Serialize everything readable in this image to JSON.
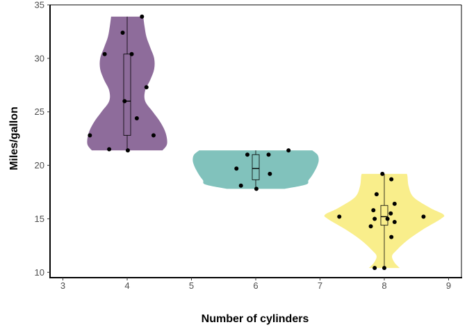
{
  "chart_data": {
    "type": "violin",
    "xlabel": "Number of cylinders",
    "ylabel": "Miles/gallon",
    "xlim": [
      2.8,
      9.2
    ],
    "ylim": [
      9.5,
      35
    ],
    "x_ticks": [
      3,
      4,
      5,
      6,
      7,
      8,
      9
    ],
    "y_ticks": [
      10,
      15,
      20,
      25,
      30,
      35
    ],
    "grid": false,
    "groups": [
      {
        "x": 4,
        "color": "#8E6C9B",
        "width_profile": [
          [
            21.4,
            0.55
          ],
          [
            22.0,
            0.62
          ],
          [
            23.0,
            0.6
          ],
          [
            24.0,
            0.52
          ],
          [
            25.0,
            0.4
          ],
          [
            26.0,
            0.28
          ],
          [
            27.0,
            0.28
          ],
          [
            28.0,
            0.36
          ],
          [
            29.0,
            0.42
          ],
          [
            30.0,
            0.42
          ],
          [
            31.0,
            0.36
          ],
          [
            32.0,
            0.3
          ],
          [
            33.0,
            0.27
          ],
          [
            33.9,
            0.25
          ]
        ],
        "box": {
          "min": 21.4,
          "q1": 22.8,
          "median": 26.0,
          "q3": 30.4,
          "max": 33.9
        },
        "points": [
          [
            4.23,
            33.9
          ],
          [
            3.93,
            32.4
          ],
          [
            4.07,
            30.4
          ],
          [
            3.65,
            30.4
          ],
          [
            4.3,
            27.3
          ],
          [
            3.96,
            26.0
          ],
          [
            4.15,
            24.4
          ],
          [
            3.42,
            22.8
          ],
          [
            4.41,
            22.8
          ],
          [
            3.72,
            21.5
          ],
          [
            4.01,
            21.4
          ]
        ]
      },
      {
        "x": 6,
        "color": "#81C2BC",
        "width_profile": [
          [
            17.8,
            0.45
          ],
          [
            18.2,
            0.78
          ],
          [
            18.6,
            0.82
          ],
          [
            19.0,
            0.87
          ],
          [
            19.5,
            0.92
          ],
          [
            20.0,
            0.96
          ],
          [
            20.5,
            0.98
          ],
          [
            21.0,
            0.96
          ],
          [
            21.4,
            0.88
          ]
        ],
        "box": {
          "min": 17.8,
          "q1": 18.65,
          "median": 19.7,
          "q3": 21.0,
          "max": 21.4
        },
        "points": [
          [
            6.51,
            21.4
          ],
          [
            5.87,
            21.0
          ],
          [
            6.2,
            21.0
          ],
          [
            5.7,
            19.7
          ],
          [
            6.22,
            19.2
          ],
          [
            5.77,
            18.1
          ],
          [
            6.01,
            17.8
          ]
        ]
      },
      {
        "x": 8,
        "color": "#F9EE8B",
        "width_profile": [
          [
            10.4,
            0.24
          ],
          [
            10.9,
            0.16
          ],
          [
            11.5,
            0.12
          ],
          [
            12.0,
            0.18
          ],
          [
            13.0,
            0.36
          ],
          [
            14.0,
            0.6
          ],
          [
            15.0,
            0.88
          ],
          [
            15.4,
            0.92
          ],
          [
            16.0,
            0.72
          ],
          [
            17.0,
            0.46
          ],
          [
            18.0,
            0.38
          ],
          [
            19.0,
            0.36
          ],
          [
            19.2,
            0.35
          ]
        ],
        "box": {
          "min": 10.4,
          "q1": 14.4,
          "median": 15.2,
          "q3": 16.25,
          "max": 19.2
        },
        "points": [
          [
            7.97,
            19.2
          ],
          [
            8.11,
            18.7
          ],
          [
            7.88,
            17.3
          ],
          [
            8.16,
            16.4
          ],
          [
            7.83,
            15.8
          ],
          [
            8.1,
            15.5
          ],
          [
            7.3,
            15.2
          ],
          [
            8.61,
            15.2
          ],
          [
            7.85,
            15.0
          ],
          [
            8.05,
            15.0
          ],
          [
            8.16,
            14.7
          ],
          [
            7.79,
            14.3
          ],
          [
            8.11,
            13.3
          ],
          [
            7.85,
            10.4
          ],
          [
            8.0,
            10.4
          ]
        ]
      }
    ]
  }
}
